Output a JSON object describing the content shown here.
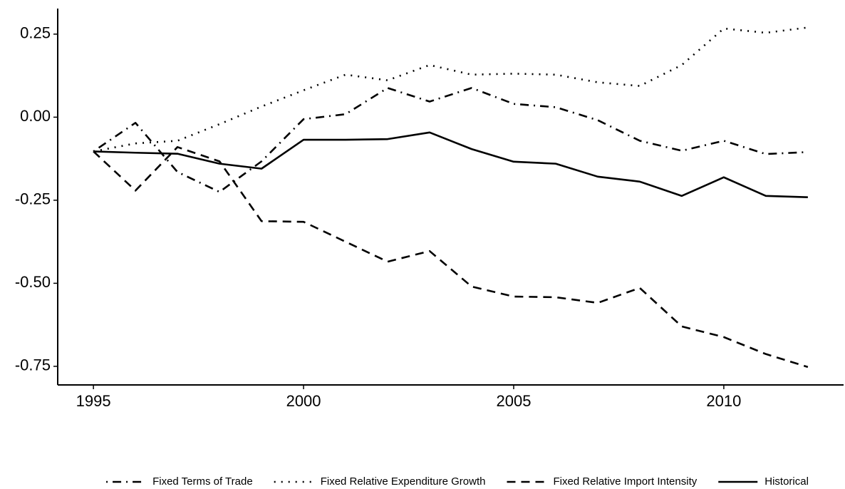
{
  "chart_data": {
    "type": "line",
    "x": [
      1995,
      1996,
      1997,
      1998,
      1999,
      2000,
      2001,
      2002,
      2003,
      2004,
      2005,
      2006,
      2007,
      2008,
      2009,
      2010,
      2011,
      2012
    ],
    "series": [
      {
        "name": "Fixed Terms of Trade",
        "color": "#000000",
        "linestyle": "dashdot",
        "values": [
          -0.103,
          -0.017,
          -0.165,
          -0.225,
          -0.133,
          -0.006,
          0.009,
          0.088,
          0.047,
          0.088,
          0.04,
          0.03,
          -0.009,
          -0.071,
          -0.101,
          -0.071,
          -0.111,
          -0.105
        ]
      },
      {
        "name": "Fixed Relative Expenditure Growth",
        "color": "#000000",
        "linestyle": "dotted",
        "values": [
          -0.103,
          -0.079,
          -0.071,
          -0.021,
          0.032,
          0.081,
          0.128,
          0.111,
          0.157,
          0.128,
          0.131,
          0.128,
          0.105,
          0.094,
          0.157,
          0.267,
          0.254,
          0.27
        ]
      },
      {
        "name": "Fixed Relative Import Intensity",
        "color": "#000000",
        "linestyle": "dashed",
        "values": [
          -0.103,
          -0.221,
          -0.09,
          -0.133,
          -0.313,
          -0.315,
          -0.375,
          -0.435,
          -0.403,
          -0.51,
          -0.54,
          -0.542,
          -0.559,
          -0.514,
          -0.63,
          -0.662,
          -0.713,
          -0.752
        ]
      },
      {
        "name": "Historical",
        "color": "#000000",
        "linestyle": "solid",
        "values": [
          -0.103,
          -0.107,
          -0.11,
          -0.14,
          -0.155,
          -0.068,
          -0.068,
          -0.066,
          -0.046,
          -0.096,
          -0.134,
          -0.14,
          -0.179,
          -0.194,
          -0.237,
          -0.181,
          -0.237,
          -0.241
        ]
      }
    ],
    "xlim": [
      1994.15,
      2012.85
    ],
    "xticks": [
      1995,
      2000,
      2005,
      2010
    ],
    "ylim": [
      -0.806,
      0.327
    ],
    "yticks": [
      0.25,
      {
        "value": 0,
        "label": "0.00"
      },
      -0.25,
      {
        "value": -0.5,
        "label": "-0.50"
      },
      -0.75
    ],
    "grid": false,
    "legend": "bottom"
  }
}
